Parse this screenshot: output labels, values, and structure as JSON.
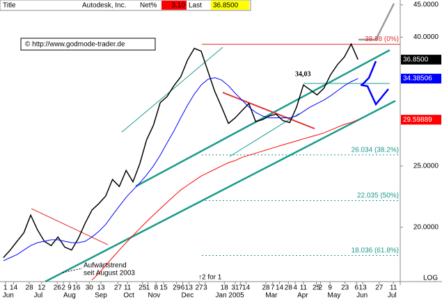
{
  "header": {
    "title": "Title",
    "name": "Autodesk, Inc.",
    "net_label": "Net%",
    "net": "3.10",
    "last_label": "Last",
    "last": "36.8500"
  },
  "source": "© http://www.godmode-trader.de",
  "chart_data": {
    "type": "line",
    "log_scale": true,
    "ylim": [
      16.4,
      45.8
    ],
    "yticks": [
      {
        "value": 20,
        "label": "20.0000"
      },
      {
        "value": 25,
        "label": "25.0000"
      },
      {
        "value": 40,
        "label": "40.0000"
      },
      {
        "value": 45,
        "label": "45.0000"
      }
    ],
    "xlim": [
      -0.5,
      58.2
    ],
    "xticks": [
      {
        "value": 0.3,
        "label": "1"
      },
      {
        "value": 1.5,
        "label": "14"
      },
      {
        "value": 3.8,
        "label": "28"
      },
      {
        "value": 5.6,
        "label": "12"
      },
      {
        "value": 7.9,
        "label": "26"
      },
      {
        "value": 8.8,
        "label": "2"
      },
      {
        "value": 9.7,
        "label": "9"
      },
      {
        "value": 10.7,
        "label": "16"
      },
      {
        "value": 12.6,
        "label": "30"
      },
      {
        "value": 14.3,
        "label": "13"
      },
      {
        "value": 16.8,
        "label": "27"
      },
      {
        "value": 18.2,
        "label": "11"
      },
      {
        "value": 20.4,
        "label": "25"
      },
      {
        "value": 21.2,
        "label": "1"
      },
      {
        "value": 22.4,
        "label": "8"
      },
      {
        "value": 23.5,
        "label": "15"
      },
      {
        "value": 25.4,
        "label": "29"
      },
      {
        "value": 26.3,
        "label": "6"
      },
      {
        "value": 27.2,
        "label": "13"
      },
      {
        "value": 28.7,
        "label": "27"
      },
      {
        "value": 29.6,
        "label": "3"
      },
      {
        "value": 32.4,
        "label": "18"
      },
      {
        "value": 34.0,
        "label": "31"
      },
      {
        "value": 34.8,
        "label": "7"
      },
      {
        "value": 35.6,
        "label": "14"
      },
      {
        "value": 38.5,
        "label": "28"
      },
      {
        "value": 39.5,
        "label": "7"
      },
      {
        "value": 40.5,
        "label": "14"
      },
      {
        "value": 41.8,
        "label": "28"
      },
      {
        "value": 42.8,
        "label": "4"
      },
      {
        "value": 44.0,
        "label": "11"
      },
      {
        "value": 45.9,
        "label": "25"
      },
      {
        "value": 46.5,
        "label": "2"
      },
      {
        "value": 47.9,
        "label": "9"
      },
      {
        "value": 50.1,
        "label": "23"
      },
      {
        "value": 51.8,
        "label": "6"
      },
      {
        "value": 52.7,
        "label": "13"
      },
      {
        "value": 55.1,
        "label": "27"
      },
      {
        "value": 57.2,
        "label": "11"
      }
    ],
    "months": [
      {
        "value": 0.7,
        "label": "Jun"
      },
      {
        "value": 5.1,
        "label": "Jul"
      },
      {
        "value": 9.7,
        "label": "Aug"
      },
      {
        "value": 14.3,
        "label": "Sep"
      },
      {
        "value": 18.4,
        "label": "Oct"
      },
      {
        "value": 22.1,
        "label": "Nov"
      },
      {
        "value": 27.0,
        "label": "Dec"
      },
      {
        "value": 33.2,
        "label": "Jan 2005"
      },
      {
        "value": 39.3,
        "label": "Mar"
      },
      {
        "value": 43.9,
        "label": "Apr"
      },
      {
        "value": 48.5,
        "label": "May"
      },
      {
        "value": 52.6,
        "label": "Jun"
      },
      {
        "value": 57.0,
        "label": "Jul"
      }
    ],
    "series": [
      {
        "name": "Price",
        "color": "#000000",
        "last_label": "36.8500",
        "values": [
          17.9,
          18.4,
          19.0,
          19.6,
          20.9,
          19.8,
          19.0,
          18.7,
          19.3,
          18.6,
          18.4,
          19.2,
          20.3,
          21.3,
          21.8,
          22.4,
          23.8,
          23.2,
          24.6,
          23.6,
          25.2,
          27.5,
          29.0,
          31.5,
          32.2,
          33.5,
          34.6,
          36.8,
          38.4,
          38.0,
          35.3,
          32.8,
          31.0,
          29.2,
          29.8,
          30.6,
          31.4,
          29.4,
          29.6,
          30.0,
          30.2,
          29.5,
          29.3,
          31.0,
          33.6,
          33.0,
          32.4,
          33.2,
          34.9,
          36.2,
          37.2,
          39.0,
          36.85
        ]
      },
      {
        "name": "MA1",
        "color": "#0000ff",
        "last_label": "34.38506",
        "values": [
          17.7,
          17.9,
          18.1,
          18.4,
          18.7,
          18.9,
          19.0,
          19.1,
          19.1,
          19.0,
          18.9,
          18.9,
          19.0,
          19.3,
          19.7,
          20.2,
          20.9,
          21.6,
          22.3,
          22.9,
          23.5,
          24.2,
          25.0,
          26.0,
          27.2,
          28.4,
          29.8,
          31.2,
          32.5,
          33.6,
          34.3,
          34.5,
          34.2,
          33.5,
          32.6,
          31.8,
          31.0,
          30.4,
          30.0,
          29.8,
          29.8,
          29.8,
          29.8,
          30.0,
          30.5,
          31.0,
          31.4,
          31.8,
          32.3,
          32.9,
          33.5,
          34.0,
          34.38506
        ]
      },
      {
        "name": "MA2",
        "color": "#ff0000",
        "last_label": "29.59889",
        "values": [
          null,
          null,
          null,
          null,
          null,
          null,
          null,
          null,
          null,
          null,
          null,
          null,
          null,
          16.5,
          16.9,
          17.4,
          17.9,
          18.4,
          18.9,
          19.4,
          19.9,
          20.4,
          20.9,
          21.4,
          21.9,
          22.4,
          22.9,
          23.3,
          23.7,
          24.1,
          24.4,
          24.7,
          25.0,
          25.3,
          25.5,
          25.8,
          26.0,
          26.2,
          26.4,
          26.6,
          26.8,
          27.0,
          27.2,
          27.4,
          27.6,
          27.8,
          28.0,
          28.2,
          28.5,
          28.8,
          29.1,
          29.3,
          29.59889
        ]
      }
    ],
    "levels": [
      {
        "value": 38.98,
        "label": "38.98 (0%)"
      },
      {
        "value": 26.034,
        "label": "26.034 (38.2%)"
      },
      {
        "value": 22.035,
        "label": "22.035 (50%)"
      },
      {
        "value": 18.036,
        "label": "18.036 (61.8%)"
      }
    ],
    "peak": {
      "value": 34.03,
      "label": "34,03"
    },
    "notes": [
      "Aufwärtstrend",
      "seit August 2003",
      "↑2 for 1",
      "LOG"
    ]
  }
}
